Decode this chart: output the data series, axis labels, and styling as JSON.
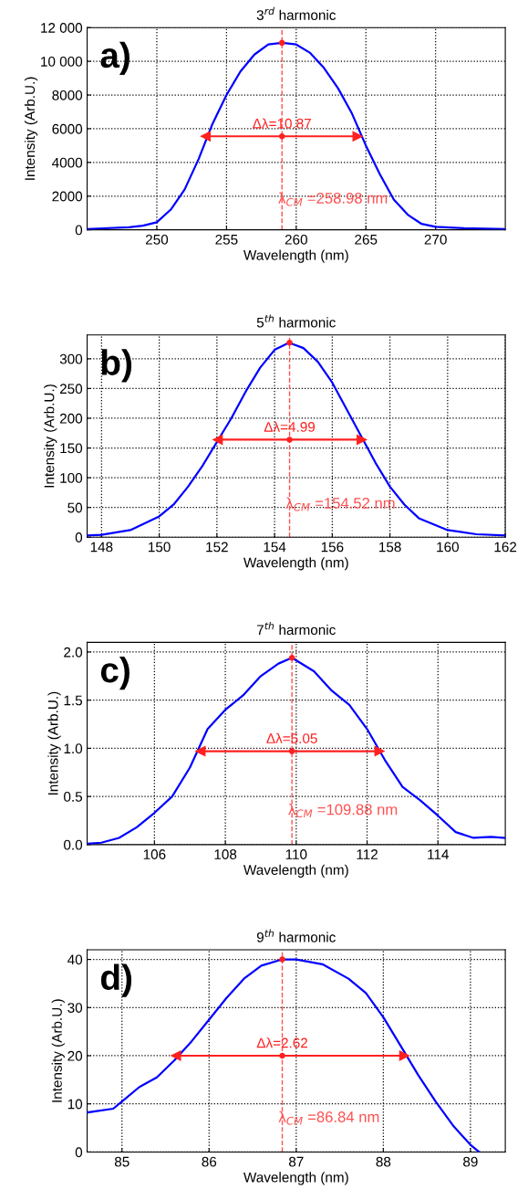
{
  "chart_data": [
    {
      "type": "line",
      "title": "3$^{rd}$ harmonic",
      "xlabel": "Wavelength (nm)",
      "ylabel": "Intensity (Arb.U.)",
      "xlim": [
        245,
        275
      ],
      "xticks": [
        250,
        255,
        260,
        265,
        270
      ],
      "ylim": [
        0,
        12000
      ],
      "yticks": [
        0,
        2000,
        4000,
        6000,
        8000,
        {
          "value": 10000,
          "label": "10 000"
        },
        {
          "value": 12000,
          "label": "12 000"
        }
      ],
      "grid": true,
      "series": [
        {
          "color": "#0000ff",
          "x": [
            245,
            248,
            249,
            250,
            251,
            252,
            253,
            254,
            255,
            256,
            257,
            258,
            259,
            260,
            261,
            262,
            263,
            264,
            265,
            266,
            267,
            268,
            269,
            270,
            272,
            275
          ],
          "values": [
            50,
            150,
            250,
            450,
            1200,
            2400,
            4200,
            6300,
            8000,
            9400,
            10400,
            11000,
            11100,
            11000,
            10500,
            9600,
            8400,
            6900,
            5000,
            3300,
            1800,
            900,
            350,
            180,
            100,
            50
          ]
        },
        {
          "type": "line",
          "color": "#ff2020",
          "marker": "triangle",
          "x": [
            253.5,
            264.4
          ],
          "values": [
            5550,
            5550
          ]
        },
        {
          "type": "scatter",
          "color": "#ff2020",
          "x": [
            258.98,
            258.98
          ],
          "values": [
            11100,
            5550
          ]
        }
      ],
      "ref_lines": [
        {
          "axis": "x",
          "value": 258.98,
          "color": "#ff5050",
          "line_style": "dashed"
        }
      ],
      "annotations": [
        "a)",
        {
          "text": "Δλ=10.87",
          "x": 258.98,
          "y": 5550
        },
        {
          "text": "λ$_{CM}$ =258.98 nm",
          "x": 258.98,
          "y": 1800
        }
      ]
    },
    {
      "type": "line",
      "title": "5$^{th}$ harmonic",
      "xlabel": "Wavelength (nm)",
      "ylabel": "Intensity (Arb.U.)",
      "xlim": [
        147.5,
        162
      ],
      "xticks": [
        148,
        150,
        152,
        154,
        156,
        158,
        160,
        162
      ],
      "ylim": [
        0,
        340
      ],
      "yticks": [
        0,
        50,
        100,
        150,
        200,
        250,
        300
      ],
      "grid": true,
      "series": [
        {
          "color": "#0000ff",
          "x": [
            147.5,
            148,
            149,
            150,
            150.5,
            151,
            151.5,
            152,
            152.5,
            153,
            153.5,
            154,
            154.5,
            155,
            155.5,
            156,
            156.5,
            157,
            157.5,
            158,
            158.5,
            159,
            160,
            161,
            162
          ],
          "values": [
            3,
            4,
            12,
            35,
            55,
            85,
            120,
            160,
            200,
            245,
            285,
            315,
            327,
            318,
            295,
            260,
            215,
            170,
            125,
            85,
            55,
            32,
            12,
            5,
            3
          ]
        },
        {
          "type": "line",
          "color": "#ff2020",
          "marker": "triangle",
          "x": [
            152.03,
            157.02
          ],
          "values": [
            164,
            164
          ]
        },
        {
          "type": "scatter",
          "color": "#ff2020",
          "x": [
            154.52,
            154.52
          ],
          "values": [
            327,
            164
          ]
        }
      ],
      "ref_lines": [
        {
          "axis": "x",
          "value": 154.52,
          "color": "#ff5050",
          "line_style": "dashed"
        }
      ],
      "annotations": [
        "b)",
        {
          "text": "Δλ=4.99",
          "x": 154.52,
          "y": 164
        },
        {
          "text": "λ$_{CM}$ =154.52 nm",
          "x": 154.52,
          "y": 55
        }
      ]
    },
    {
      "type": "line",
      "title": "7$^{th}$ harmonic",
      "xlabel": "Wavelength (nm)",
      "ylabel": "Intensity (Arb.U.)",
      "xlim": [
        104.1,
        115.9
      ],
      "xticks": [
        106,
        108,
        110,
        112,
        114
      ],
      "ylim": [
        0,
        2.1
      ],
      "yticks": [
        {
          "value": 0,
          "label": "0.0"
        },
        0.5,
        {
          "value": 1,
          "label": "1.0"
        },
        1.5,
        {
          "value": 2,
          "label": "2.0"
        }
      ],
      "grid": true,
      "series": [
        {
          "color": "#0000ff",
          "x": [
            104.1,
            104.5,
            105,
            105.5,
            106,
            106.5,
            107,
            107.5,
            108,
            108.5,
            109,
            109.5,
            109.88,
            110.5,
            111,
            111.5,
            112,
            112.5,
            113,
            113.5,
            114,
            114.5,
            115,
            115.5,
            115.9
          ],
          "values": [
            0.01,
            0.02,
            0.07,
            0.18,
            0.33,
            0.5,
            0.8,
            1.2,
            1.4,
            1.55,
            1.75,
            1.88,
            1.94,
            1.8,
            1.6,
            1.45,
            1.2,
            0.88,
            0.6,
            0.46,
            0.3,
            0.13,
            0.07,
            0.08,
            0.07
          ]
        },
        {
          "type": "line",
          "color": "#ff2020",
          "marker": "triangle",
          "x": [
            107.3,
            112.35
          ],
          "values": [
            0.97,
            0.97
          ]
        },
        {
          "type": "scatter",
          "color": "#ff2020",
          "x": [
            109.88,
            109.88
          ],
          "values": [
            1.94,
            0.97
          ]
        }
      ],
      "ref_lines": [
        {
          "axis": "x",
          "value": 109.88,
          "color": "#ff5050",
          "line_style": "dashed"
        }
      ],
      "annotations": [
        "c)",
        {
          "text": "Δλ=5.05",
          "x": 109.88,
          "y": 0.97
        },
        {
          "text": "λ$_{CM}$ =109.88 nm",
          "x": 109.88,
          "y": 0.35
        }
      ]
    },
    {
      "type": "line",
      "title": "9$^{th}$ harmonic",
      "xlabel": "Wavelength (nm)",
      "ylabel": "Intensity (Arb.U.)",
      "xlim": [
        84.6,
        89.4
      ],
      "xticks": [
        85,
        86,
        87,
        88,
        89
      ],
      "ylim": [
        0,
        42
      ],
      "yticks": [
        0,
        10,
        20,
        30,
        40
      ],
      "grid": true,
      "series": [
        {
          "color": "#0000ff",
          "x": [
            84.6,
            84.9,
            85,
            85.2,
            85.4,
            85.6,
            85.8,
            86,
            86.2,
            86.4,
            86.6,
            86.84,
            87,
            87.3,
            87.6,
            87.8,
            88,
            88.2,
            88.4,
            88.6,
            88.8,
            89,
            89.1
          ],
          "values": [
            8.2,
            9,
            10.5,
            13.5,
            15.5,
            19,
            23,
            27.5,
            32,
            36,
            38.7,
            40,
            40,
            39,
            36,
            33,
            28,
            22,
            16,
            10.5,
            5.5,
            1.5,
            0
          ]
        },
        {
          "type": "line",
          "color": "#ff2020",
          "marker": "triangle",
          "x": [
            85.62,
            88.24
          ],
          "values": [
            20,
            20
          ]
        },
        {
          "type": "scatter",
          "color": "#ff2020",
          "x": [
            86.84,
            86.84
          ],
          "values": [
            40,
            20
          ]
        }
      ],
      "ref_lines": [
        {
          "axis": "x",
          "value": 86.84,
          "color": "#ff5050",
          "line_style": "dashed"
        }
      ],
      "annotations": [
        "d)",
        {
          "text": "Δλ=2.62",
          "x": 86.84,
          "y": 20
        },
        {
          "text": "λ$_{CM}$ =86.84 nm",
          "x": 86.84,
          "y": 7
        }
      ]
    }
  ]
}
